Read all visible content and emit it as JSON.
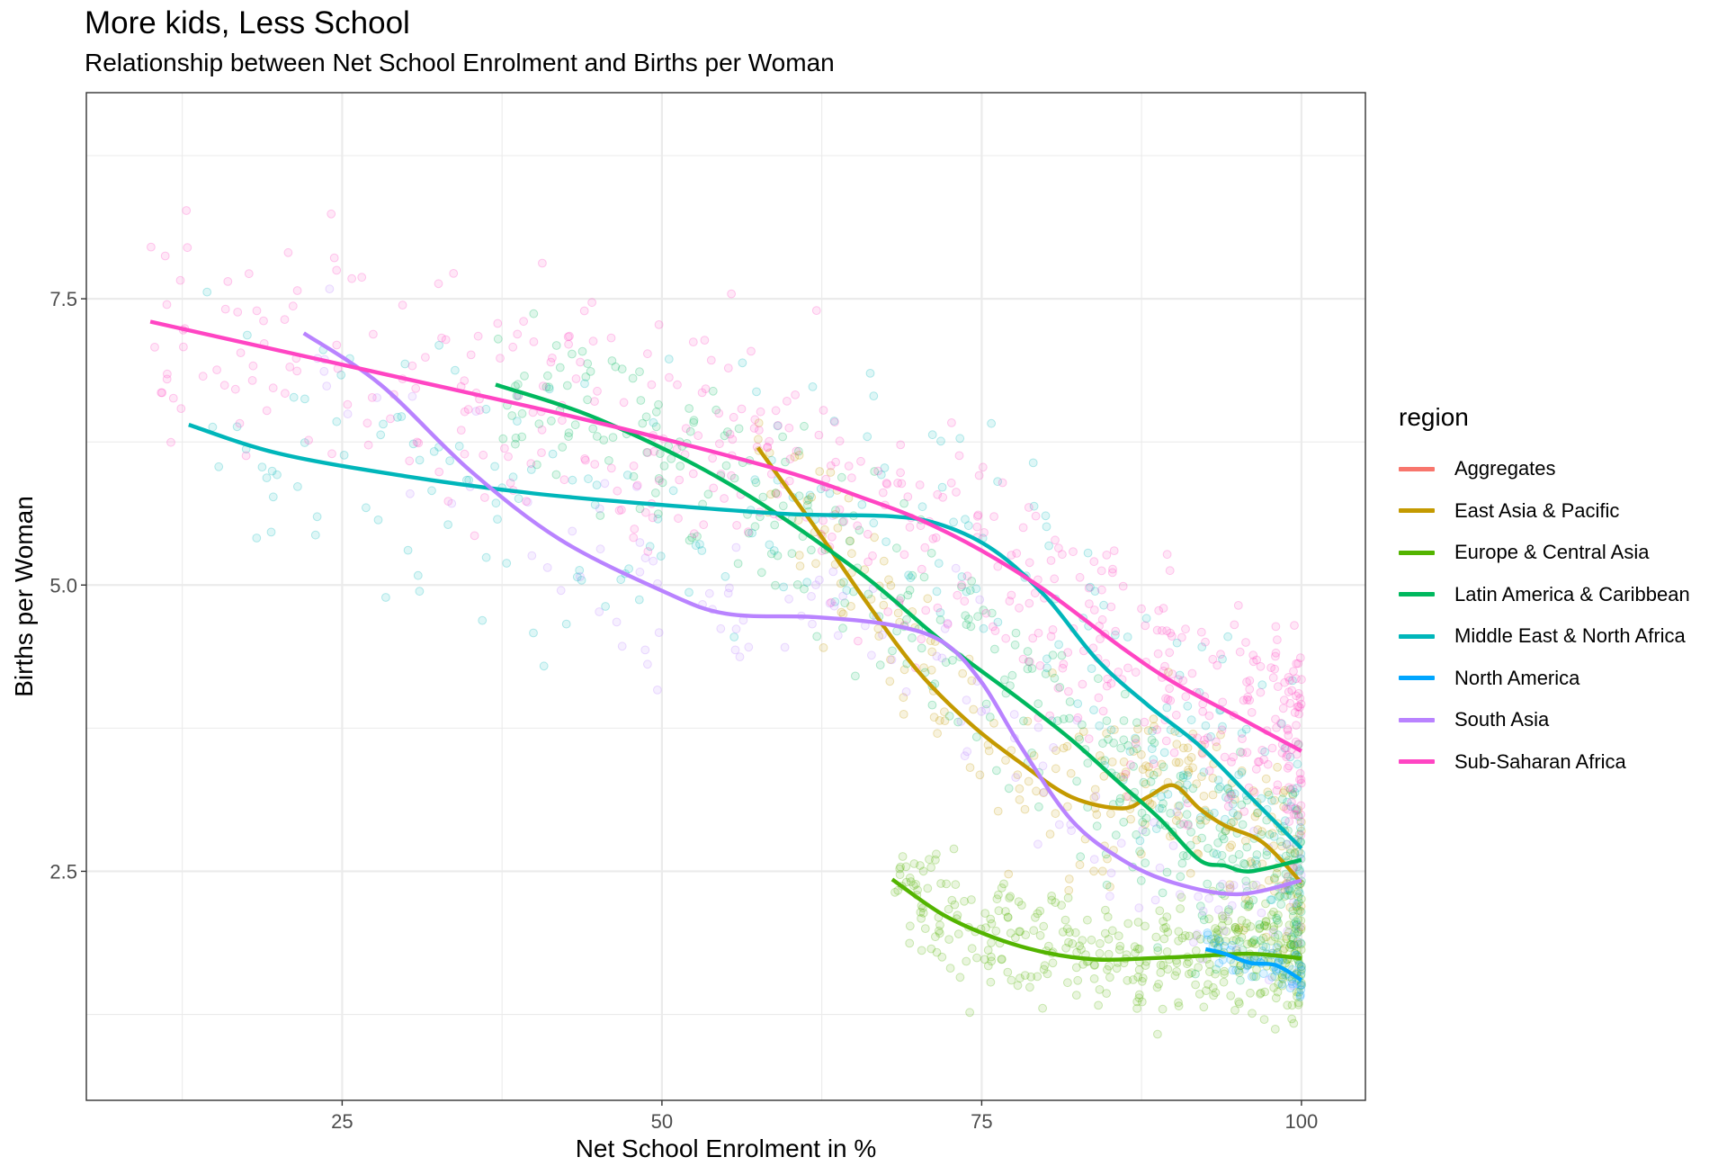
{
  "chart_data": {
    "type": "scatter",
    "title": "More kids, Less School",
    "subtitle": "Relationship between Net School Enrolment and Births per Woman",
    "xlabel": "Net School Enrolment in %",
    "ylabel": "Births per Woman",
    "xlim": [
      5,
      105
    ],
    "ylim": [
      0.5,
      9.3
    ],
    "x_ticks": [
      25,
      50,
      75,
      100
    ],
    "x_tick_labels": [
      "25",
      "50",
      "75",
      "100"
    ],
    "y_ticks": [
      2.5,
      5.0,
      7.5
    ],
    "y_tick_labels": [
      "2.5",
      "5.0",
      "7.5"
    ],
    "grid": true,
    "legend_title": "region",
    "legend_position": "right",
    "series": [
      {
        "name": "Aggregates",
        "color": "#F8766D",
        "smooth_x": [],
        "smooth_y": []
      },
      {
        "name": "East Asia & Pacific",
        "color": "#C49A00",
        "smooth_x": [
          57.5,
          62,
          66,
          70,
          74,
          78,
          82,
          86,
          88,
          90,
          92,
          94,
          97,
          100
        ],
        "smooth_y": [
          6.2,
          5.5,
          4.85,
          4.25,
          3.8,
          3.45,
          3.15,
          3.05,
          3.15,
          3.25,
          3.05,
          2.9,
          2.75,
          2.4
        ]
      },
      {
        "name": "Europe & Central Asia",
        "color": "#53B400",
        "smooth_x": [
          68,
          72,
          76,
          80,
          84,
          88,
          92,
          96,
          100
        ],
        "smooth_y": [
          2.43,
          2.12,
          1.92,
          1.79,
          1.73,
          1.74,
          1.76,
          1.78,
          1.74
        ]
      },
      {
        "name": "Latin America & Caribbean",
        "color": "#00B85E",
        "smooth_x": [
          37,
          45,
          55,
          65,
          72,
          78,
          82,
          86,
          89,
          92,
          94,
          96,
          100
        ],
        "smooth_y": [
          6.75,
          6.45,
          5.9,
          5.15,
          4.5,
          4.0,
          3.65,
          3.25,
          2.95,
          2.6,
          2.55,
          2.5,
          2.6
        ]
      },
      {
        "name": "Middle East & North Africa",
        "color": "#00B6BA",
        "smooth_x": [
          13,
          20,
          30,
          40,
          50,
          60,
          68,
          72,
          76,
          80,
          84,
          88,
          92,
          96,
          100
        ],
        "smooth_y": [
          6.4,
          6.15,
          5.95,
          5.8,
          5.7,
          5.62,
          5.6,
          5.52,
          5.3,
          4.9,
          4.35,
          3.95,
          3.6,
          3.15,
          2.7
        ]
      },
      {
        "name": "North America",
        "color": "#00A6FF",
        "smooth_x": [
          92.5,
          94,
          96,
          98,
          100
        ],
        "smooth_y": [
          1.82,
          1.78,
          1.7,
          1.68,
          1.55
        ]
      },
      {
        "name": "South Asia",
        "color": "#B983FF",
        "smooth_x": [
          22,
          28,
          35,
          42,
          50,
          55,
          62,
          68,
          72,
          75,
          78,
          82,
          86,
          90,
          95,
          100
        ],
        "smooth_y": [
          7.2,
          6.75,
          6.0,
          5.4,
          4.95,
          4.75,
          4.72,
          4.65,
          4.5,
          4.15,
          3.6,
          2.95,
          2.6,
          2.4,
          2.3,
          2.42
        ]
      },
      {
        "name": "Sub-Saharan Africa",
        "color": "#FF45C3",
        "smooth_x": [
          10,
          20,
          30,
          40,
          50,
          60,
          66,
          70,
          75,
          80,
          86,
          90,
          95,
          100
        ],
        "smooth_y": [
          7.3,
          7.05,
          6.8,
          6.55,
          6.28,
          5.98,
          5.75,
          5.58,
          5.3,
          4.95,
          4.45,
          4.15,
          3.85,
          3.55
        ]
      }
    ]
  }
}
